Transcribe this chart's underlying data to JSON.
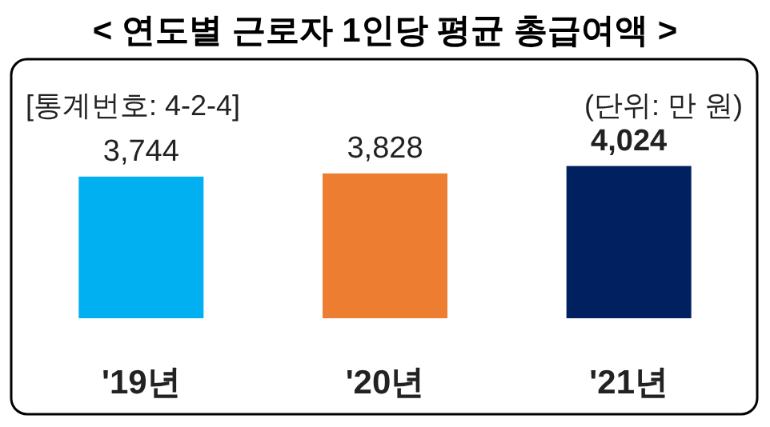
{
  "chart_data": {
    "type": "bar",
    "title": "< 연도별 근로자 1인당 평균 총급여액 >",
    "annotations": [
      "[통계번호: 4-2-4]",
      "(단위: 만 원)"
    ],
    "categories": [
      "'19년",
      "'20년",
      "'21년"
    ],
    "values": [
      3744,
      3828,
      4024
    ],
    "colors": [
      "#00b0f0",
      "#ed7d31",
      "#002060"
    ],
    "value_labels": [
      "3,744",
      "3,828",
      "4,024"
    ],
    "tick_labels": "x"
  }
}
